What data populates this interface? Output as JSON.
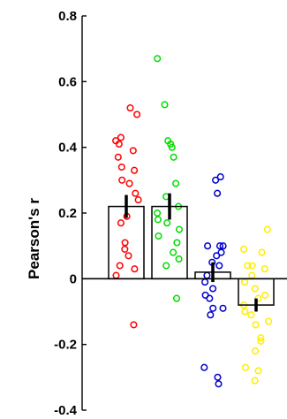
{
  "chart_data": {
    "type": "bar",
    "title": "",
    "xlabel": "",
    "ylabel": "Pearson's r",
    "ylim": [
      -0.4,
      0.8
    ],
    "y_ticks": [
      -0.4,
      -0.2,
      0,
      0.2,
      0.4,
      0.6,
      0.8
    ],
    "y_tick_labels": [
      "-0.4",
      "-0.2",
      "0",
      "0.2",
      "0.4",
      "0.6",
      "0.8"
    ],
    "grid": false,
    "legend": "none",
    "categories": [
      "",
      "",
      "",
      ""
    ],
    "series": [
      {
        "color": "#ff0000",
        "bar_mean": 0.22,
        "sem": 0.035,
        "points": [
          0.52,
          0.5,
          0.43,
          0.42,
          0.41,
          0.39,
          0.37,
          0.34,
          0.33,
          0.3,
          0.29,
          0.26,
          0.24,
          0.19,
          0.17,
          0.11,
          0.09,
          0.07,
          0.04,
          0.03,
          0.01,
          -0.14
        ]
      },
      {
        "color": "#00dd00",
        "bar_mean": 0.22,
        "sem": 0.04,
        "points": [
          0.67,
          0.53,
          0.42,
          0.41,
          0.4,
          0.37,
          0.29,
          0.25,
          0.22,
          0.2,
          0.18,
          0.17,
          0.15,
          0.13,
          0.11,
          0.08,
          0.06,
          0.04,
          -0.06
        ]
      },
      {
        "color": "#0000cc",
        "bar_mean": 0.02,
        "sem": 0.03,
        "points": [
          0.31,
          0.3,
          0.26,
          0.1,
          0.1,
          0.1,
          0.08,
          0.07,
          0.05,
          0.04,
          0.01,
          -0.01,
          -0.03,
          -0.05,
          -0.06,
          -0.09,
          -0.09,
          -0.11,
          -0.27,
          -0.3,
          -0.32
        ]
      },
      {
        "color": "#ffee00",
        "bar_mean": -0.08,
        "sem": 0.02,
        "points": [
          0.15,
          0.09,
          0.08,
          0.04,
          0.04,
          0.03,
          0.01,
          -0.01,
          -0.03,
          -0.05,
          -0.06,
          -0.08,
          -0.1,
          -0.11,
          -0.13,
          -0.14,
          -0.18,
          -0.19,
          -0.22,
          -0.27,
          -0.28,
          -0.31
        ]
      }
    ]
  }
}
